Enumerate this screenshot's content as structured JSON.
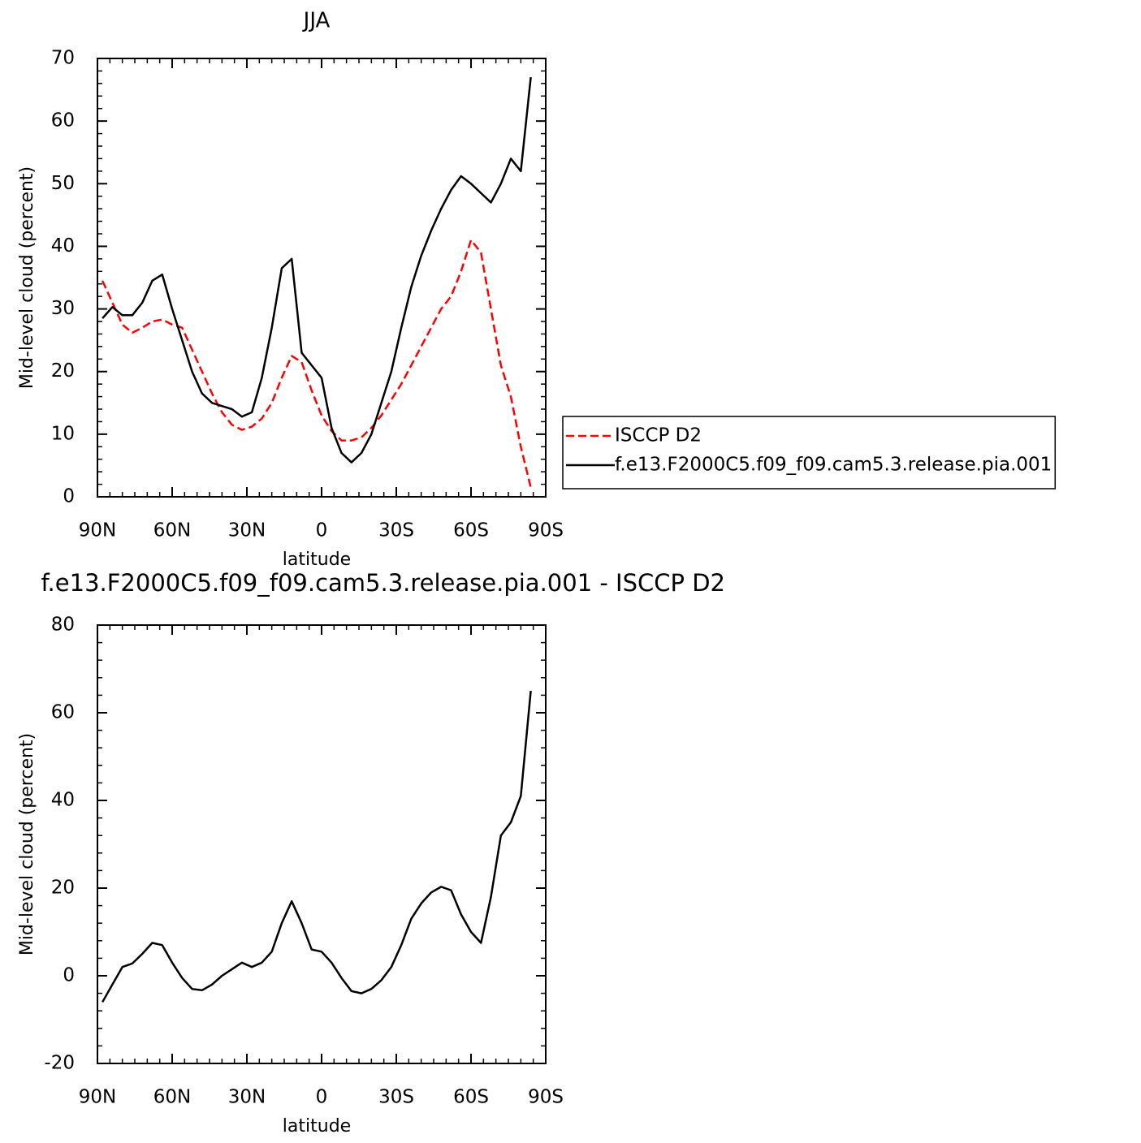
{
  "chart_data": [
    {
      "type": "line",
      "title": "JJA",
      "xlabel": "latitude",
      "ylabel": "Mid-level cloud (percent)",
      "x": [
        88,
        84,
        80,
        76,
        72,
        68,
        64,
        60,
        56,
        52,
        48,
        44,
        40,
        36,
        32,
        28,
        24,
        20,
        16,
        12,
        8,
        4,
        0,
        -4,
        -8,
        -12,
        -16,
        -20,
        -24,
        -28,
        -32,
        -36,
        -40,
        -44,
        -48,
        -52,
        -56,
        -60,
        -64,
        -68,
        -72,
        -76,
        -80,
        -84
      ],
      "xlim": [
        90,
        -90
      ],
      "xticks": [
        {
          "value": 90,
          "label": "90N"
        },
        {
          "value": 60,
          "label": "60N"
        },
        {
          "value": 30,
          "label": "30N"
        },
        0,
        {
          "value": -30,
          "label": "30S"
        },
        {
          "value": -60,
          "label": "60S"
        },
        {
          "value": -90,
          "label": "90S"
        }
      ],
      "ylim": [
        0,
        70
      ],
      "yticks": [
        0,
        10,
        20,
        30,
        40,
        50,
        60,
        70
      ],
      "legend": "right",
      "series": [
        {
          "name": "ISCCP D2",
          "color": "#ff0000",
          "linestyle": "dashed",
          "values": [
            34.5,
            31,
            27.5,
            26.2,
            27,
            28,
            28.3,
            27.5,
            27,
            23.5,
            20,
            16.5,
            13.5,
            11.5,
            10.7,
            11.2,
            12.5,
            15,
            19,
            22.5,
            21.5,
            17,
            13,
            10.5,
            9,
            9,
            9.5,
            11,
            13,
            15.5,
            18,
            21,
            24,
            27,
            30,
            32,
            36,
            41,
            39,
            30,
            21,
            16,
            8,
            1.5
          ]
        },
        {
          "name": "f.e13.F2000C5.f09_f09.cam5.3.release.pia.001",
          "color": "#000000",
          "linestyle": "solid",
          "values": [
            28.5,
            30.3,
            29,
            29,
            31,
            34.5,
            35.5,
            30,
            25,
            20,
            16.5,
            15,
            14.5,
            14,
            12.8,
            13.5,
            19,
            27,
            36.5,
            38,
            23,
            21,
            19,
            11,
            7,
            5.5,
            7,
            10,
            15,
            20,
            27,
            33.5,
            38.5,
            42.5,
            46,
            49,
            51.2,
            50,
            48.5,
            47,
            50,
            54,
            52,
            67
          ]
        }
      ]
    },
    {
      "type": "line",
      "title": "f.e13.F2000C5.f09_f09.cam5.3.release.pia.001 - ISCCP D2",
      "xlabel": "latitude",
      "ylabel": "Mid-level cloud (percent)",
      "x": [
        88,
        84,
        80,
        76,
        72,
        68,
        64,
        60,
        56,
        52,
        48,
        44,
        40,
        36,
        32,
        28,
        24,
        20,
        16,
        12,
        8,
        4,
        0,
        -4,
        -8,
        -12,
        -16,
        -20,
        -24,
        -28,
        -32,
        -36,
        -40,
        -44,
        -48,
        -52,
        -56,
        -60,
        -64,
        -68,
        -72,
        -76,
        -80,
        -84
      ],
      "xlim": [
        90,
        -90
      ],
      "xticks": [
        {
          "value": 90,
          "label": "90N"
        },
        {
          "value": 60,
          "label": "60N"
        },
        {
          "value": 30,
          "label": "30N"
        },
        0,
        {
          "value": -30,
          "label": "30S"
        },
        {
          "value": -60,
          "label": "60S"
        },
        {
          "value": -90,
          "label": "90S"
        }
      ],
      "ylim": [
        -20,
        80
      ],
      "yticks": [
        -20,
        0,
        20,
        40,
        60,
        80
      ],
      "color": "#000000",
      "values": [
        -6,
        -2,
        2,
        2.8,
        5,
        7.5,
        7,
        3,
        -0.5,
        -3,
        -3.3,
        -2,
        0,
        1.5,
        3,
        2,
        3,
        5.5,
        12,
        17,
        12,
        6,
        5.5,
        3,
        -0.5,
        -3.5,
        -4,
        -3,
        -1,
        2,
        7,
        13,
        16.5,
        19,
        20.3,
        19.5,
        14,
        10,
        7.5,
        18,
        32,
        35,
        41,
        65
      ]
    }
  ]
}
